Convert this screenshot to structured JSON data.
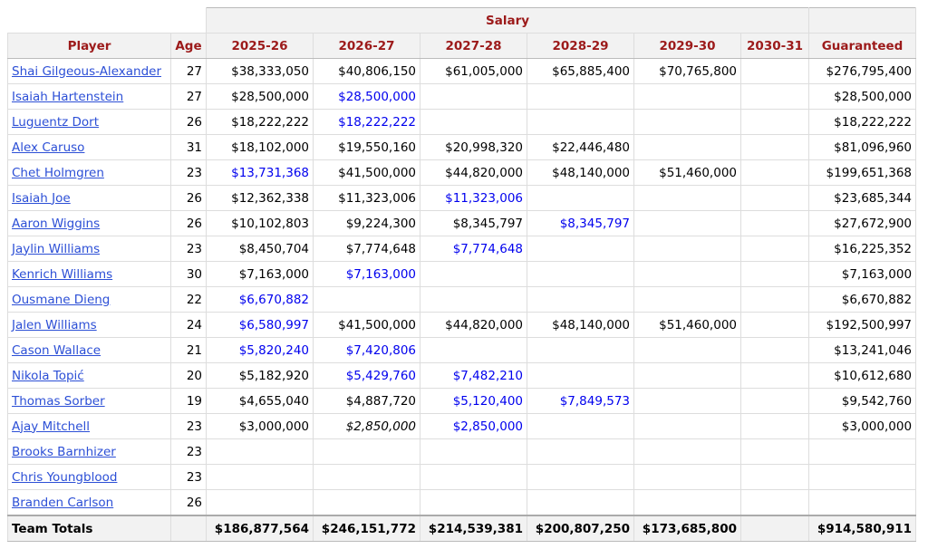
{
  "table": {
    "group_header": "Salary",
    "columns": [
      "Player",
      "Age",
      "2025-26",
      "2026-27",
      "2027-28",
      "2028-29",
      "2029-30",
      "2030-31",
      "Guaranteed"
    ],
    "rows": [
      [
        "Shai Gilgeous-Alexander",
        27,
        "$38,333,050",
        "$40,806,150",
        "$61,005,000",
        "$65,885,400",
        "$70,765,800",
        null,
        "$276,795,400"
      ],
      [
        "Isaiah Hartenstein",
        27,
        "$28,500,000",
        {
          "text": "$28,500,000",
          "color": "#0000ee"
        },
        null,
        null,
        null,
        null,
        "$28,500,000"
      ],
      [
        "Luguentz Dort",
        26,
        "$18,222,222",
        {
          "text": "$18,222,222",
          "color": "#0000ee"
        },
        null,
        null,
        null,
        null,
        "$18,222,222"
      ],
      [
        "Alex Caruso",
        31,
        "$18,102,000",
        "$19,550,160",
        "$20,998,320",
        "$22,446,480",
        null,
        null,
        "$81,096,960"
      ],
      [
        "Chet Holmgren",
        23,
        {
          "text": "$13,731,368",
          "color": "#0000ee"
        },
        "$41,500,000",
        "$44,820,000",
        "$48,140,000",
        "$51,460,000",
        null,
        "$199,651,368"
      ],
      [
        "Isaiah Joe",
        26,
        "$12,362,338",
        "$11,323,006",
        {
          "text": "$11,323,006",
          "color": "#0000ee"
        },
        null,
        null,
        null,
        "$23,685,344"
      ],
      [
        "Aaron Wiggins",
        26,
        "$10,102,803",
        "$9,224,300",
        "$8,345,797",
        {
          "text": "$8,345,797",
          "color": "#0000ee"
        },
        null,
        null,
        "$27,672,900"
      ],
      [
        "Jaylin Williams",
        23,
        "$8,450,704",
        "$7,774,648",
        {
          "text": "$7,774,648",
          "color": "#0000ee"
        },
        null,
        null,
        null,
        "$16,225,352"
      ],
      [
        "Kenrich Williams",
        30,
        "$7,163,000",
        {
          "text": "$7,163,000",
          "color": "#0000ee"
        },
        null,
        null,
        null,
        null,
        "$7,163,000"
      ],
      [
        "Ousmane Dieng",
        22,
        {
          "text": "$6,670,882",
          "color": "#0000ee"
        },
        null,
        null,
        null,
        null,
        null,
        "$6,670,882"
      ],
      [
        "Jalen Williams",
        24,
        {
          "text": "$6,580,997",
          "color": "#0000ee"
        },
        "$41,500,000",
        "$44,820,000",
        "$48,140,000",
        "$51,460,000",
        null,
        "$192,500,997"
      ],
      [
        "Cason Wallace",
        21,
        {
          "text": "$5,820,240",
          "color": "#0000ee"
        },
        {
          "text": "$7,420,806",
          "color": "#0000ee"
        },
        null,
        null,
        null,
        null,
        "$13,241,046"
      ],
      [
        "Nikola Topić",
        20,
        "$5,182,920",
        {
          "text": "$5,429,760",
          "color": "#0000ee"
        },
        {
          "text": "$7,482,210",
          "color": "#0000ee"
        },
        null,
        null,
        null,
        "$10,612,680"
      ],
      [
        "Thomas Sorber",
        19,
        "$4,655,040",
        "$4,887,720",
        {
          "text": "$5,120,400",
          "color": "#0000ee"
        },
        {
          "text": "$7,849,573",
          "color": "#0000ee"
        },
        null,
        null,
        "$9,542,760"
      ],
      [
        "Ajay Mitchell",
        23,
        "$3,000,000",
        {
          "text": "$2,850,000",
          "italic": true
        },
        {
          "text": "$2,850,000",
          "color": "#0000ee"
        },
        null,
        null,
        null,
        "$3,000,000"
      ],
      [
        "Brooks Barnhizer",
        23,
        null,
        null,
        null,
        null,
        null,
        null,
        null
      ],
      [
        "Chris Youngblood",
        23,
        null,
        null,
        null,
        null,
        null,
        null,
        null
      ],
      [
        "Branden Carlson",
        26,
        null,
        null,
        null,
        null,
        null,
        null,
        null
      ]
    ],
    "totals": [
      "Team Totals",
      null,
      "$186,877,564",
      "$246,151,772",
      "$214,539,381",
      "$200,807,250",
      "$173,685,800",
      null,
      "$914,580,911"
    ]
  }
}
